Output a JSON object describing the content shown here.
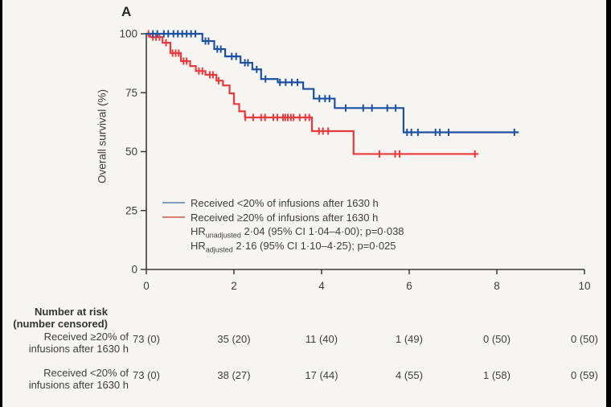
{
  "panel_label": "A",
  "colors": {
    "blue_curve": "#1d50a2",
    "red_curve": "#e8393d",
    "legend_blue": "#7f9db8",
    "legend_red": "#d97c76",
    "axis": "#3a3a3a",
    "text": "#3f3e3e",
    "background": "#f6f5f2",
    "edge_bar": "#000000"
  },
  "y_axis": {
    "label": "Overall survival (%)",
    "ticks": [
      100,
      75,
      50,
      25,
      0
    ],
    "range": [
      0,
      100
    ]
  },
  "x_axis": {
    "ticks": [
      0,
      2,
      4,
      6,
      8,
      10
    ],
    "range": [
      0,
      10
    ]
  },
  "legend": {
    "series": [
      {
        "label": "Received <20% of infusions after 1630 h"
      },
      {
        "label": "Received ≥20% of infusions after 1630 h"
      }
    ],
    "stats": [
      {
        "prefix": "HR",
        "subscript": "unadjusted",
        "text": " 2·04 (95% CI 1·04–4·00); p=0·038"
      },
      {
        "prefix": "HR",
        "subscript": "adjusted",
        "text": " 2·16 (95% CI 1·10–4·25); p=0·025"
      }
    ]
  },
  "chart_data": {
    "type": "line",
    "subtype": "kaplan-meier-step",
    "title": "",
    "xlabel": "",
    "ylabel": "Overall survival (%)",
    "xlim": [
      0,
      10
    ],
    "ylim": [
      0,
      100
    ],
    "grid": false,
    "legend_position": "inside-lower-left",
    "series": [
      {
        "name": "Received <20% of infusions after 1630 h",
        "color": "#1d50a2",
        "steps": [
          [
            0,
            100
          ],
          [
            1.28,
            96.9
          ],
          [
            1.55,
            93.5
          ],
          [
            1.8,
            90.4
          ],
          [
            2.15,
            87.7
          ],
          [
            2.42,
            84.9
          ],
          [
            2.62,
            80.8
          ],
          [
            3.0,
            79.4
          ],
          [
            3.58,
            76.6
          ],
          [
            3.82,
            72.5
          ],
          [
            4.3,
            68.5
          ],
          [
            5.87,
            58.2
          ]
        ],
        "end_time": 8.5,
        "censor_times": [
          0.15,
          0.25,
          0.4,
          0.5,
          0.62,
          0.72,
          0.82,
          0.92,
          1.02,
          1.12,
          1.35,
          1.42,
          1.62,
          1.7,
          1.95,
          2.05,
          2.25,
          2.32,
          2.52,
          2.72,
          3.05,
          3.18,
          3.32,
          3.45,
          3.95,
          4.08,
          4.18,
          4.55,
          4.95,
          5.15,
          5.5,
          5.69,
          5.95,
          6.05,
          6.2,
          6.6,
          6.7,
          6.9,
          8.4
        ]
      },
      {
        "name": "Received ≥20% of infusions after 1630 h",
        "color": "#e8393d",
        "steps": [
          [
            0,
            100
          ],
          [
            0.09,
            98.6
          ],
          [
            0.37,
            96.2
          ],
          [
            0.55,
            91.8
          ],
          [
            0.79,
            88.4
          ],
          [
            1.0,
            86.3
          ],
          [
            1.13,
            84.2
          ],
          [
            1.35,
            82.6
          ],
          [
            1.6,
            80.1
          ],
          [
            1.75,
            78.1
          ],
          [
            1.9,
            74.7
          ],
          [
            2.0,
            70.2
          ],
          [
            2.12,
            67.1
          ],
          [
            2.25,
            64.5
          ],
          [
            3.78,
            58.7
          ],
          [
            4.73,
            49.0
          ]
        ],
        "end_time": 7.58,
        "censor_times": [
          0.05,
          0.15,
          0.22,
          0.3,
          0.45,
          0.6,
          0.67,
          0.74,
          0.85,
          0.92,
          1.2,
          1.28,
          1.45,
          1.52,
          1.65,
          2.26,
          2.44,
          2.62,
          2.71,
          2.9,
          2.99,
          3.12,
          3.17,
          3.23,
          3.3,
          3.36,
          3.5,
          3.63,
          3.72,
          3.94,
          4.03,
          4.15,
          5.32,
          5.68,
          5.78,
          7.5
        ]
      }
    ]
  },
  "risk_table": {
    "header_line1": "Number at risk",
    "header_line2": "(number censored)",
    "time_points": [
      0,
      2,
      4,
      6,
      8,
      10
    ],
    "rows": [
      {
        "label_line1": "Received ≥20% of",
        "label_line2": "infusions after 1630 h",
        "values": [
          "73 (0)",
          "35 (20)",
          "11 (40)",
          "1 (49)",
          "0 (50)",
          "0 (50)"
        ]
      },
      {
        "label_line1": "Received <20% of",
        "label_line2": "infusions after 1630 h",
        "values": [
          "73 (0)",
          "38 (27)",
          "17 (44)",
          "4 (55)",
          "1 (58)",
          "0 (59)"
        ]
      }
    ]
  }
}
